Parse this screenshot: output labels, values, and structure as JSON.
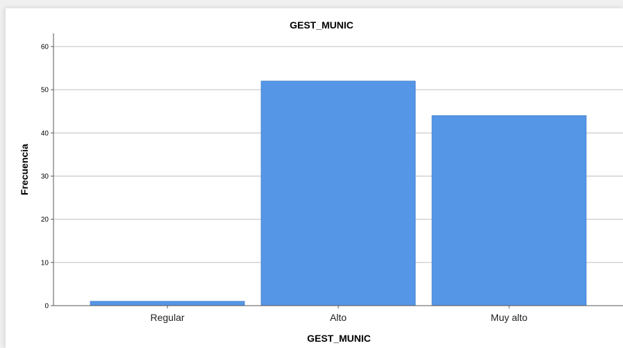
{
  "chart_data": {
    "type": "bar",
    "title": "GEST_MUNIC",
    "xlabel": "GEST_MUNIC",
    "ylabel": "Frecuencia",
    "categories": [
      "Regular",
      "Alto",
      "Muy alto"
    ],
    "values": [
      1,
      52,
      44
    ],
    "ylim": [
      0,
      60
    ],
    "yticks": [
      0,
      10,
      20,
      30,
      40,
      50,
      60
    ],
    "grid": true,
    "bar_color": "#5596e6"
  }
}
